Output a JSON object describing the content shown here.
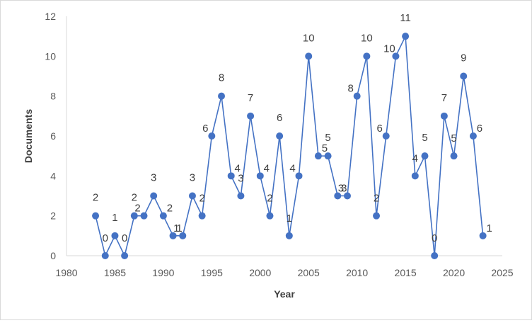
{
  "chart_data": {
    "type": "line",
    "xlabel": "Year",
    "ylabel": "Documents",
    "xlim": [
      1980,
      2025
    ],
    "ylim": [
      0,
      12
    ],
    "xticks": [
      1980,
      1985,
      1990,
      1995,
      2000,
      2005,
      2010,
      2015,
      2020,
      2025
    ],
    "yticks": [
      0,
      2,
      4,
      6,
      8,
      10,
      12
    ],
    "grid": false,
    "legend": "none",
    "colors": {
      "series": "#4472c4",
      "axis": "#d9d9d9"
    },
    "series": [
      {
        "x": [
          1983,
          1984,
          1985,
          1986,
          1987,
          1988,
          1989,
          1990,
          1991,
          1992,
          1993,
          1994,
          1995,
          1996,
          1997,
          1998,
          1999,
          2000,
          2001,
          2002,
          2003,
          2004,
          2005,
          2006,
          2007,
          2008,
          2009,
          2010,
          2011,
          2012,
          2013,
          2014,
          2015,
          2016,
          2017,
          2018,
          2019,
          2020,
          2021,
          2022,
          2023
        ],
        "values": [
          2,
          0,
          1,
          0,
          2,
          2,
          3,
          2,
          1,
          1,
          3,
          2,
          6,
          8,
          4,
          3,
          7,
          4,
          2,
          6,
          1,
          4,
          10,
          5,
          5,
          3,
          3,
          8,
          10,
          2,
          6,
          10,
          11,
          4,
          5,
          0,
          7,
          5,
          9,
          6,
          1
        ]
      }
    ]
  }
}
